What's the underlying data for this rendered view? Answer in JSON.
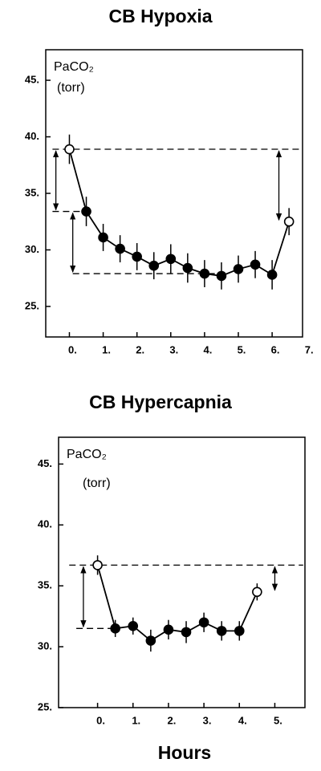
{
  "chart_data": [
    {
      "type": "line",
      "title": "CB Hypoxia",
      "y_label": "PaCO₂",
      "y_unit": "(torr)",
      "xlim": [
        -0.7,
        6.9
      ],
      "ylim": [
        22.3,
        47.7
      ],
      "xticks": [
        {
          "value": 0,
          "label": "0."
        },
        {
          "value": 1,
          "label": "1."
        },
        {
          "value": 2,
          "label": "2."
        },
        {
          "value": 3,
          "label": "3."
        },
        {
          "value": 4,
          "label": "4."
        },
        {
          "value": 5,
          "label": "5."
        },
        {
          "value": 6,
          "label": "6."
        },
        {
          "value": 7,
          "label": "7."
        }
      ],
      "yticks": [
        {
          "value": 25,
          "label": "25."
        },
        {
          "value": 30,
          "label": "30."
        },
        {
          "value": 35,
          "label": "35."
        },
        {
          "value": 40,
          "label": "40."
        },
        {
          "value": 45,
          "label": "45."
        }
      ],
      "series": [
        {
          "color": "#000000",
          "x": [
            0,
            0.5,
            1,
            1.5,
            2,
            2.5,
            3,
            3.5,
            4,
            4.5,
            5,
            5.5,
            6,
            6.5
          ],
          "values": [
            38.9,
            33.4,
            31.1,
            30.1,
            29.4,
            28.6,
            29.2,
            28.4,
            27.9,
            27.7,
            28.3,
            28.7,
            27.8,
            32.5
          ],
          "errors": [
            1.3,
            1.3,
            1.2,
            1.2,
            1.2,
            1.2,
            1.3,
            1.3,
            1.2,
            1.2,
            1.2,
            1.2,
            1.3,
            1.2
          ],
          "point_fill": [
            "white",
            "black",
            "black",
            "black",
            "black",
            "black",
            "black",
            "black",
            "black",
            "black",
            "black",
            "black",
            "black",
            "white"
          ]
        }
      ],
      "hlines": [
        {
          "y": 38.9,
          "x0": -0.5,
          "x1": 6.9
        },
        {
          "y": 33.4,
          "x0": -0.5,
          "x1": 0.5
        },
        {
          "y": 27.9,
          "x0": 0.1,
          "x1": 4.5
        }
      ],
      "arrows": [
        {
          "x": -0.4,
          "from": 38.9,
          "to": 33.4
        },
        {
          "x": 0.1,
          "from": 33.4,
          "to": 27.9
        },
        {
          "x": 6.2,
          "from": 38.9,
          "to": 32.5
        }
      ]
    },
    {
      "type": "line",
      "title": "CB Hypercapnia",
      "y_label": "PaCO₂",
      "y_unit": "(torr)",
      "x_label": "Hours",
      "xlim": [
        -1.1,
        5.85
      ],
      "ylim": [
        25,
        47.2
      ],
      "xticks": [
        {
          "value": 0,
          "label": "0."
        },
        {
          "value": 1,
          "label": "1."
        },
        {
          "value": 2,
          "label": "2."
        },
        {
          "value": 3,
          "label": "3."
        },
        {
          "value": 4,
          "label": "4."
        },
        {
          "value": 5,
          "label": "5."
        }
      ],
      "yticks": [
        {
          "value": 25,
          "label": "25."
        },
        {
          "value": 30,
          "label": "30."
        },
        {
          "value": 35,
          "label": "35."
        },
        {
          "value": 40,
          "label": "40."
        },
        {
          "value": 45,
          "label": "45."
        }
      ],
      "series": [
        {
          "color": "#000000",
          "x": [
            0,
            0.5,
            1,
            1.5,
            2,
            2.5,
            3,
            3.5,
            4,
            4.5
          ],
          "values": [
            36.7,
            31.5,
            31.7,
            30.5,
            31.4,
            31.2,
            32.0,
            31.3,
            31.3,
            34.5
          ],
          "errors": [
            0.8,
            0.7,
            0.7,
            0.9,
            0.8,
            0.9,
            0.8,
            0.8,
            0.8,
            0.7
          ],
          "point_fill": [
            "white",
            "black",
            "black",
            "black",
            "black",
            "black",
            "black",
            "black",
            "black",
            "white"
          ]
        }
      ],
      "hlines": [
        {
          "y": 36.7,
          "x0": -0.8,
          "x1": 5.8
        },
        {
          "y": 31.5,
          "x0": -0.6,
          "x1": 0.5
        }
      ],
      "arrows": [
        {
          "x": -0.4,
          "from": 36.7,
          "to": 31.5
        },
        {
          "x": 5.0,
          "from": 36.7,
          "to": 34.5
        }
      ]
    }
  ]
}
